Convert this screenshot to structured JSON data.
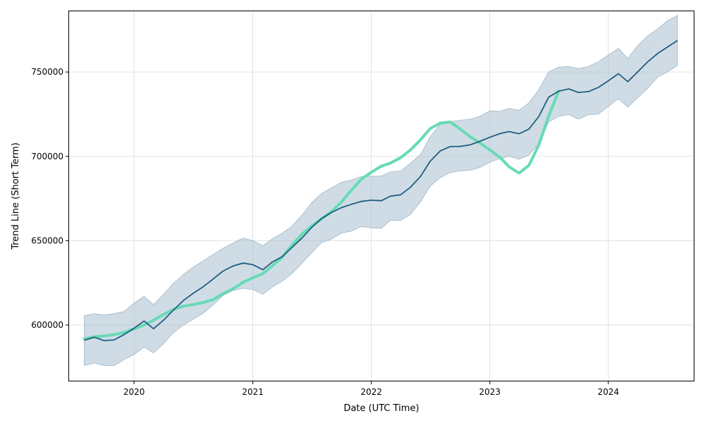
{
  "chart_data": {
    "type": "line",
    "title": "",
    "xlabel": "Date (UTC Time)",
    "ylabel": "Trend Line (Short Term)",
    "xlim": [
      "2019-06-15",
      "2024-09-20"
    ],
    "ylim": [
      567000,
      786000
    ],
    "x_ticks": [
      "2020",
      "2021",
      "2022",
      "2023",
      "2024"
    ],
    "y_ticks": [
      "600000",
      "650000",
      "700000",
      "750000"
    ],
    "grid": true,
    "legend": "none",
    "colors": {
      "band": "#a9c0d0",
      "trend": "#1f5f80",
      "actual": "#66dbb5"
    },
    "series": [
      {
        "role": "band",
        "x": [
          "2019-08-01",
          "2019-09-01",
          "2019-10-01",
          "2019-11-01",
          "2019-12-01",
          "2020-01-01",
          "2020-02-01",
          "2020-03-01",
          "2020-04-01",
          "2020-05-01",
          "2020-06-01",
          "2020-07-01",
          "2020-08-01",
          "2020-09-01",
          "2020-10-01",
          "2020-11-01",
          "2020-12-01",
          "2021-01-01",
          "2021-02-01",
          "2021-03-01",
          "2021-04-01",
          "2021-05-01",
          "2021-06-01",
          "2021-07-01",
          "2021-08-01",
          "2021-09-01",
          "2021-10-01",
          "2021-11-01",
          "2021-12-01",
          "2022-01-01",
          "2022-02-01",
          "2022-03-01",
          "2022-04-01",
          "2022-05-01",
          "2022-06-01",
          "2022-07-01",
          "2022-08-01",
          "2022-09-01",
          "2022-10-01",
          "2022-11-01",
          "2022-12-01",
          "2023-01-01",
          "2023-02-01",
          "2023-03-01",
          "2023-04-01",
          "2023-05-01",
          "2023-06-01",
          "2023-07-01",
          "2023-08-01",
          "2023-09-01",
          "2023-10-01",
          "2023-11-01",
          "2023-12-01",
          "2024-01-01",
          "2024-02-01",
          "2024-03-01",
          "2024-04-01",
          "2024-05-01",
          "2024-06-01",
          "2024-07-01",
          "2024-08-01"
        ],
        "lower": [
          576000,
          577500,
          576000,
          576000,
          579500,
          582500,
          587000,
          583500,
          589000,
          595500,
          600000,
          603500,
          607000,
          612000,
          617500,
          620500,
          621800,
          621000,
          618300,
          622500,
          626000,
          630500,
          636500,
          642800,
          649000,
          651000,
          654600,
          655700,
          658500,
          657600,
          657300,
          662200,
          662000,
          665500,
          673000,
          682300,
          687400,
          690400,
          691400,
          691800,
          693400,
          696600,
          698700,
          700000,
          698300,
          700800,
          707600,
          720500,
          723700,
          724800,
          722000,
          724700,
          725000,
          729600,
          734200,
          729200,
          734900,
          740300,
          747000,
          750000,
          754000
        ],
        "upper": [
          605500,
          606700,
          605900,
          606800,
          607900,
          613000,
          617000,
          612000,
          618200,
          624600,
          629900,
          634300,
          638000,
          641800,
          645500,
          648500,
          651500,
          650000,
          647000,
          651000,
          654400,
          658500,
          665000,
          672500,
          678000,
          681400,
          684600,
          686000,
          688000,
          688200,
          688300,
          690800,
          691300,
          695800,
          700900,
          711500,
          718900,
          720600,
          721300,
          722000,
          723700,
          727000,
          726700,
          728400,
          727300,
          731600,
          739500,
          750000,
          752800,
          753300,
          752000,
          753300,
          756000,
          760000,
          764000,
          758000,
          765800,
          771300,
          775500,
          780400,
          783500
        ]
      },
      {
        "role": "trend",
        "x": [
          "2019-08-01",
          "2019-09-01",
          "2019-10-01",
          "2019-11-01",
          "2019-12-01",
          "2020-01-01",
          "2020-02-01",
          "2020-03-01",
          "2020-04-01",
          "2020-05-01",
          "2020-06-01",
          "2020-07-01",
          "2020-08-01",
          "2020-09-01",
          "2020-10-01",
          "2020-11-01",
          "2020-12-01",
          "2021-01-01",
          "2021-02-01",
          "2021-03-01",
          "2021-04-01",
          "2021-05-01",
          "2021-06-01",
          "2021-07-01",
          "2021-08-01",
          "2021-09-01",
          "2021-10-01",
          "2021-11-01",
          "2021-12-01",
          "2022-01-01",
          "2022-02-01",
          "2022-03-01",
          "2022-04-01",
          "2022-05-01",
          "2022-06-01",
          "2022-07-01",
          "2022-08-01",
          "2022-09-01",
          "2022-10-01",
          "2022-11-01",
          "2022-12-01",
          "2023-01-01",
          "2023-02-01",
          "2023-03-01",
          "2023-04-01",
          "2023-05-01",
          "2023-06-01",
          "2023-07-01",
          "2023-08-01",
          "2023-09-01",
          "2023-10-01",
          "2023-11-01",
          "2023-12-01",
          "2024-01-01",
          "2024-02-01",
          "2024-03-01",
          "2024-04-01",
          "2024-05-01",
          "2024-06-01",
          "2024-07-01",
          "2024-08-01"
        ],
        "values": [
          591000,
          592800,
          590800,
          591200,
          594300,
          598100,
          602400,
          597800,
          602900,
          608800,
          614500,
          618800,
          622700,
          627300,
          632000,
          635000,
          636700,
          635800,
          632800,
          637200,
          640500,
          645900,
          651500,
          657800,
          663200,
          666800,
          669600,
          671600,
          673300,
          674000,
          673700,
          676400,
          677200,
          681600,
          688000,
          697000,
          703200,
          705800,
          705900,
          706800,
          708900,
          711300,
          713500,
          714700,
          713400,
          716100,
          723600,
          735100,
          738600,
          740000,
          737900,
          738400,
          740800,
          744800,
          749000,
          744300,
          750200,
          756000,
          761000,
          764800,
          768700
        ]
      },
      {
        "role": "actual",
        "x": [
          "2019-08-01",
          "2019-09-01",
          "2019-10-01",
          "2019-11-01",
          "2019-12-01",
          "2020-01-01",
          "2020-02-01",
          "2020-03-01",
          "2020-04-01",
          "2020-05-01",
          "2020-06-01",
          "2020-07-01",
          "2020-08-01",
          "2020-09-01",
          "2020-10-01",
          "2020-11-01",
          "2020-12-01",
          "2021-01-01",
          "2021-02-01",
          "2021-03-01",
          "2021-04-01",
          "2021-05-01",
          "2021-06-01",
          "2021-07-01",
          "2021-08-01",
          "2021-09-01",
          "2021-10-01",
          "2021-11-01",
          "2021-12-01",
          "2022-01-01",
          "2022-02-01",
          "2022-03-01",
          "2022-04-01",
          "2022-05-01",
          "2022-06-01",
          "2022-07-01",
          "2022-08-01",
          "2022-09-01",
          "2022-10-01",
          "2022-11-01",
          "2022-12-01",
          "2023-01-01",
          "2023-02-01",
          "2023-03-01",
          "2023-04-01",
          "2023-05-01",
          "2023-06-01",
          "2023-07-01",
          "2023-08-01"
        ],
        "values": [
          591800,
          593100,
          593500,
          594300,
          595600,
          597700,
          600000,
          602900,
          606300,
          609200,
          611200,
          612100,
          613300,
          615100,
          618600,
          621500,
          625200,
          628000,
          630500,
          634900,
          640000,
          647300,
          653800,
          658700,
          663000,
          667300,
          673000,
          680000,
          686400,
          690600,
          694200,
          696000,
          699200,
          703700,
          709700,
          716400,
          719700,
          720400,
          716300,
          711700,
          708000,
          703800,
          699400,
          693900,
          690100,
          694600,
          706700,
          723800,
          738700
        ]
      }
    ]
  }
}
